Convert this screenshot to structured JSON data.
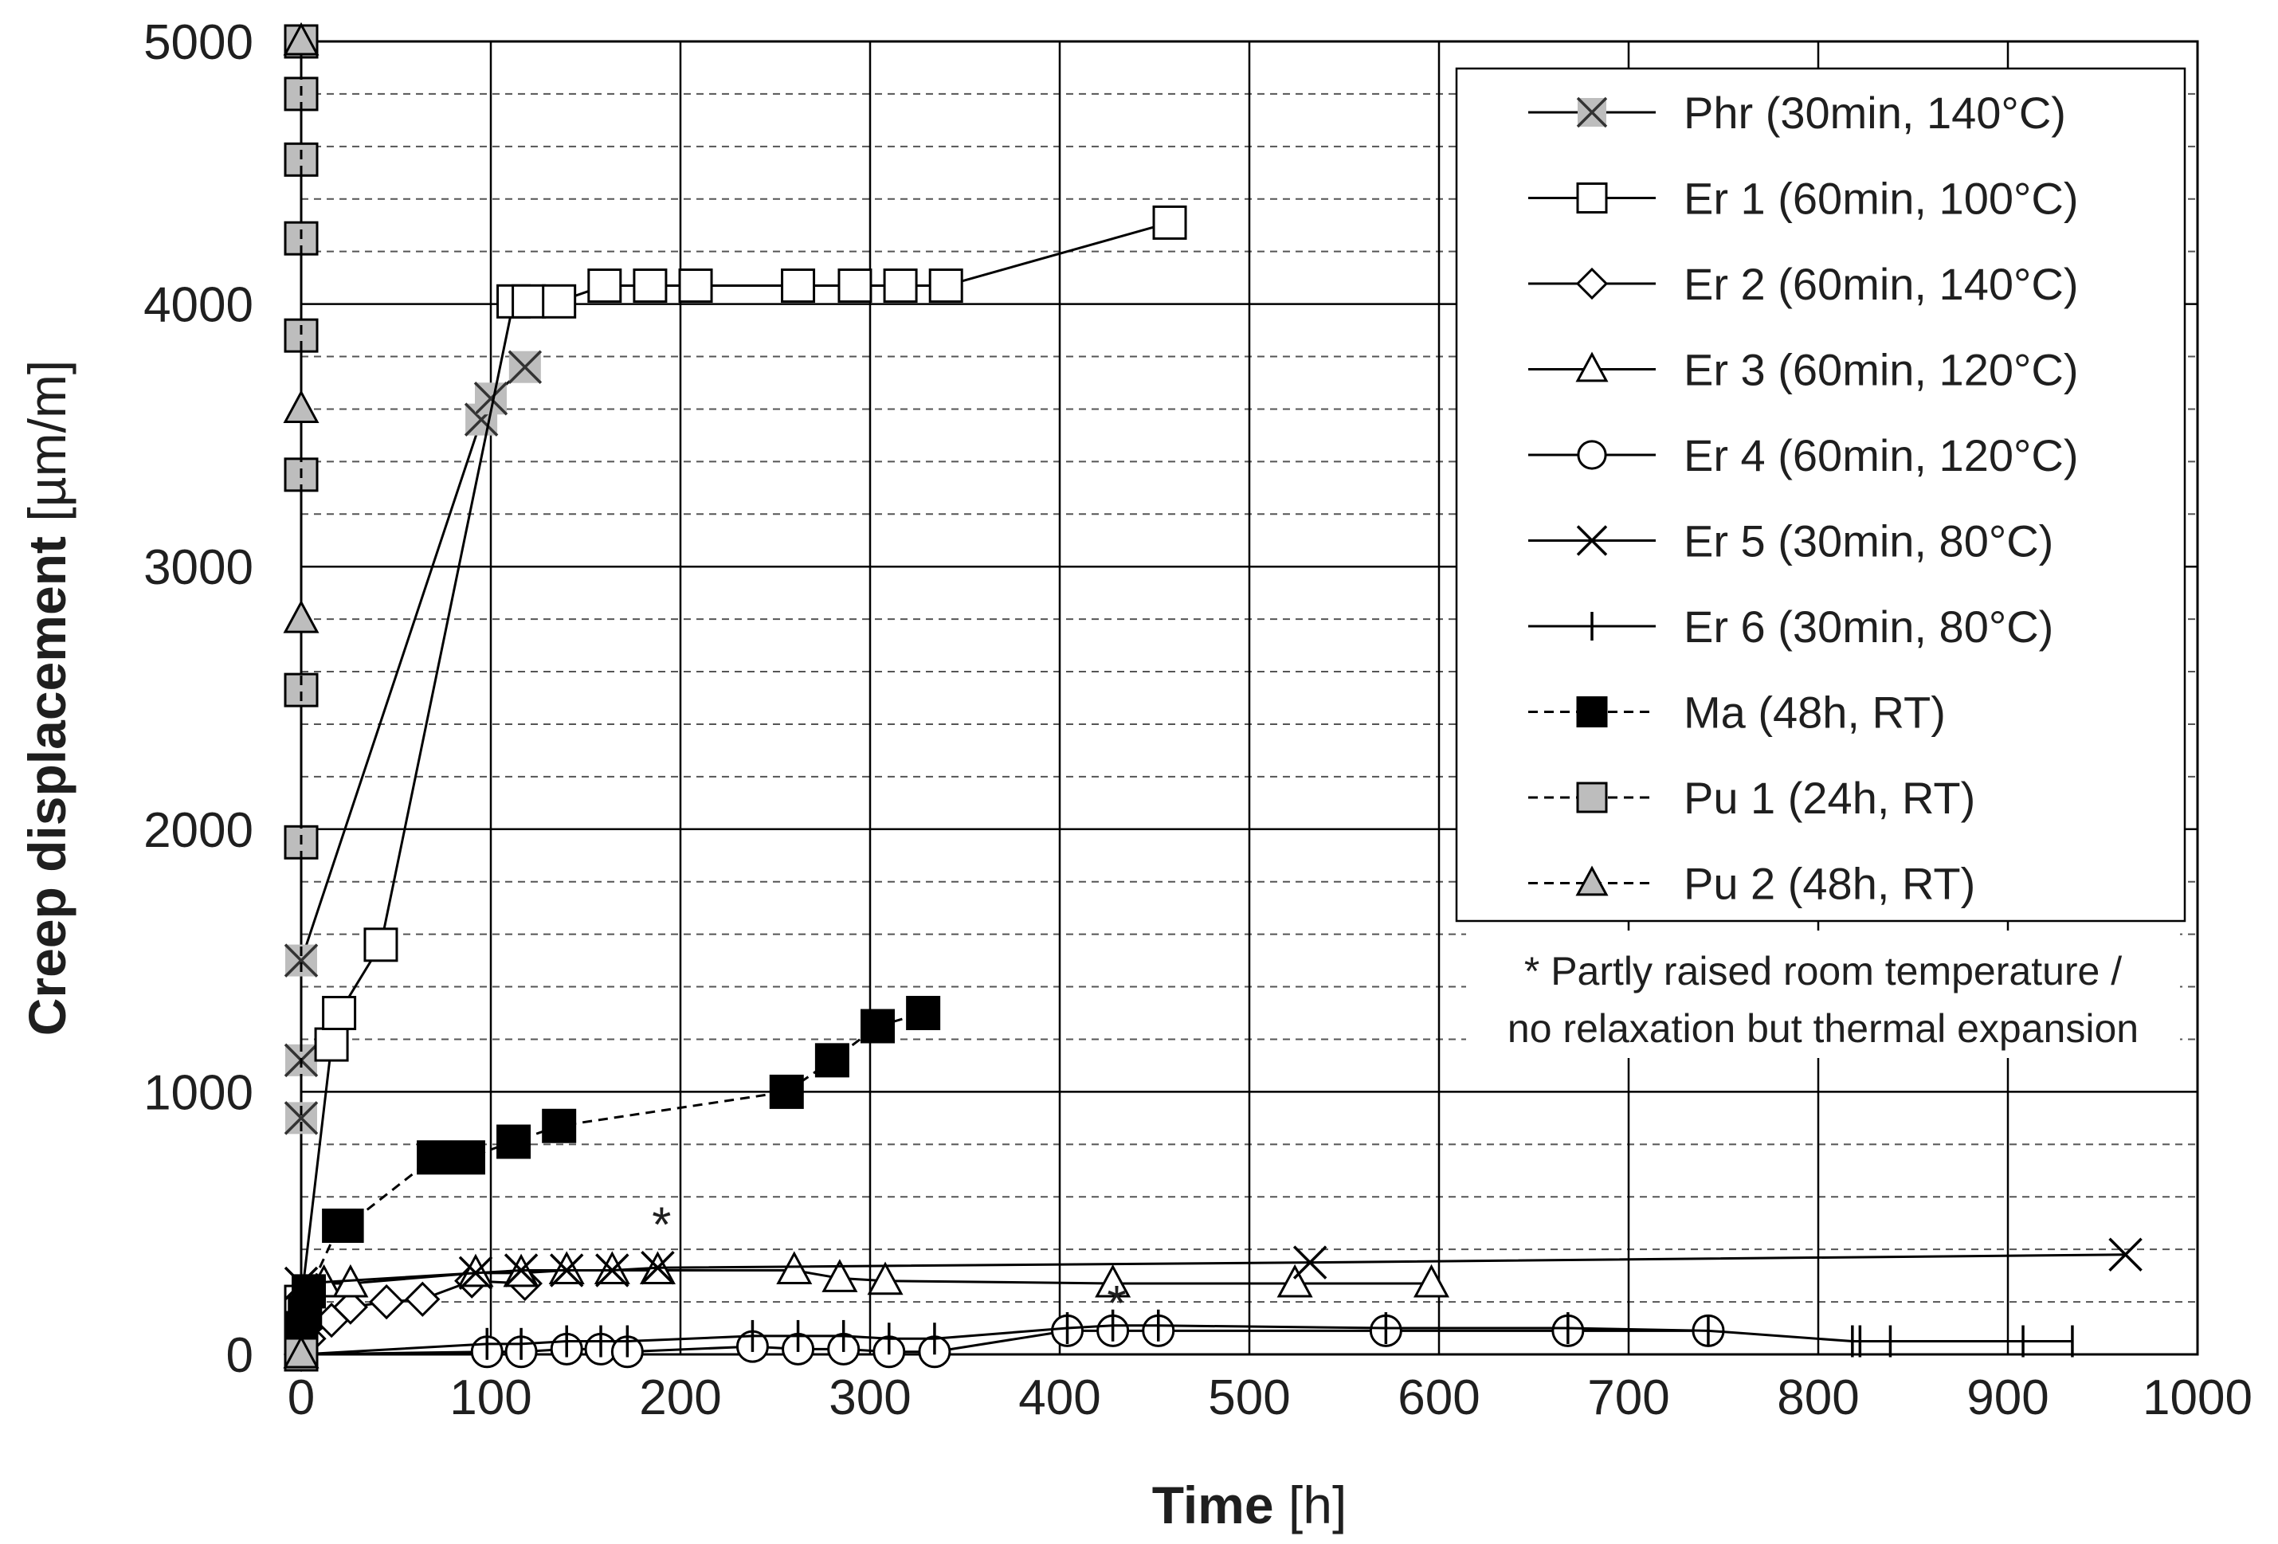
{
  "chart_data": {
    "type": "line",
    "xlabel": {
      "bold": "Time",
      "rest": " [h]"
    },
    "ylabel": {
      "bold": "Creep displacement",
      "rest": " [µm/m]"
    },
    "xlim": [
      0,
      1000
    ],
    "ylim": [
      0,
      5000
    ],
    "xticks": [
      "0",
      "100",
      "200",
      "300",
      "400",
      "500",
      "600",
      "700",
      "800",
      "900",
      "1000"
    ],
    "yticks": [
      "0",
      "1000",
      "2000",
      "3000",
      "4000",
      "5000"
    ],
    "grid": {
      "major": true,
      "minor_y_dashed": true
    },
    "legend_position": "top-right",
    "note": [
      "* Partly raised room temperature /",
      "no relaxation but thermal expansion"
    ],
    "asterisk_annotations": [
      {
        "text": "*",
        "x": 190,
        "y": 430
      },
      {
        "text": "*",
        "x": 430,
        "y": 130
      }
    ],
    "series": [
      {
        "name": "Phr (30min, 140°C)",
        "line": "solid",
        "marker": "x-square",
        "fill": "#bdbdbd",
        "points": [
          [
            0,
            0
          ],
          [
            0,
            900
          ],
          [
            0,
            1120
          ],
          [
            0,
            1500
          ],
          [
            95,
            3560
          ],
          [
            100,
            3640
          ],
          [
            118,
            3760
          ]
        ]
      },
      {
        "name": "Er 1 (60min, 100°C)",
        "line": "solid",
        "marker": "square",
        "fill": "#ffffff",
        "points": [
          [
            0,
            0
          ],
          [
            0,
            200
          ],
          [
            16,
            1180
          ],
          [
            20,
            1300
          ],
          [
            42,
            1560
          ],
          [
            112,
            4010
          ],
          [
            120,
            4010
          ],
          [
            136,
            4010
          ],
          [
            160,
            4070
          ],
          [
            184,
            4070
          ],
          [
            208,
            4070
          ],
          [
            262,
            4070
          ],
          [
            292,
            4070
          ],
          [
            316,
            4070
          ],
          [
            340,
            4070
          ],
          [
            458,
            4310
          ]
        ]
      },
      {
        "name": "Er 2 (60min, 140°C)",
        "line": "solid",
        "marker": "diamond",
        "fill": "#ffffff",
        "points": [
          [
            0,
            0
          ],
          [
            4,
            60
          ],
          [
            16,
            130
          ],
          [
            26,
            180
          ],
          [
            45,
            200
          ],
          [
            64,
            210
          ],
          [
            90,
            280
          ],
          [
            118,
            270
          ]
        ]
      },
      {
        "name": "Er 3 (60min, 120°C)",
        "line": "solid",
        "marker": "triangle",
        "fill": "#ffffff",
        "points": [
          [
            0,
            0
          ],
          [
            12,
            270
          ],
          [
            26,
            270
          ],
          [
            92,
            310
          ],
          [
            116,
            310
          ],
          [
            140,
            320
          ],
          [
            164,
            320
          ],
          [
            188,
            320
          ],
          [
            260,
            320
          ],
          [
            284,
            290
          ],
          [
            308,
            280
          ],
          [
            428,
            270
          ],
          [
            524,
            270
          ],
          [
            596,
            270
          ]
        ]
      },
      {
        "name": "Er 4 (60min, 120°C)",
        "line": "solid",
        "marker": "circle",
        "fill": "#ffffff",
        "points": [
          [
            0,
            0
          ],
          [
            98,
            10
          ],
          [
            116,
            10
          ],
          [
            140,
            20
          ],
          [
            158,
            20
          ],
          [
            172,
            10
          ],
          [
            238,
            30
          ],
          [
            262,
            20
          ],
          [
            286,
            20
          ],
          [
            310,
            10
          ],
          [
            334,
            10
          ],
          [
            404,
            90
          ],
          [
            428,
            90
          ],
          [
            452,
            90
          ],
          [
            572,
            90
          ],
          [
            668,
            90
          ],
          [
            742,
            90
          ]
        ]
      },
      {
        "name": "Er 5 (30min, 80°C)",
        "line": "solid",
        "marker": "x",
        "fill": "#ffffff",
        "points": [
          [
            0,
            270
          ],
          [
            92,
            310
          ],
          [
            116,
            320
          ],
          [
            140,
            320
          ],
          [
            164,
            320
          ],
          [
            188,
            330
          ],
          [
            532,
            350
          ],
          [
            962,
            380
          ]
        ]
      },
      {
        "name": "Er 6 (30min, 80°C)",
        "line": "solid",
        "marker": "plus",
        "fill": "#ffffff",
        "points": [
          [
            0,
            0
          ],
          [
            98,
            40
          ],
          [
            116,
            40
          ],
          [
            140,
            50
          ],
          [
            158,
            50
          ],
          [
            172,
            50
          ],
          [
            238,
            70
          ],
          [
            262,
            70
          ],
          [
            286,
            70
          ],
          [
            310,
            60
          ],
          [
            334,
            60
          ],
          [
            404,
            100
          ],
          [
            428,
            110
          ],
          [
            452,
            110
          ],
          [
            572,
            100
          ],
          [
            668,
            100
          ],
          [
            742,
            90
          ],
          [
            818,
            50
          ],
          [
            822,
            50
          ],
          [
            838,
            50
          ],
          [
            908,
            50
          ],
          [
            934,
            50
          ]
        ]
      },
      {
        "name": "Ma (48h, RT)",
        "line": "dashed",
        "marker": "square",
        "fill": "#000000",
        "points": [
          [
            0,
            100
          ],
          [
            2,
            160
          ],
          [
            4,
            240
          ],
          [
            20,
            490
          ],
          [
            24,
            490
          ],
          [
            70,
            750
          ],
          [
            88,
            750
          ],
          [
            112,
            810
          ],
          [
            136,
            870
          ],
          [
            256,
            1000
          ],
          [
            280,
            1120
          ],
          [
            304,
            1250
          ],
          [
            328,
            1300
          ]
        ]
      },
      {
        "name": "Pu 1 (24h, RT)",
        "line": "dashed",
        "marker": "square",
        "fill": "#bdbdbd",
        "points": [
          [
            0,
            0
          ],
          [
            0,
            1950
          ],
          [
            0,
            2530
          ],
          [
            0,
            3350
          ],
          [
            0,
            3880
          ],
          [
            0,
            4250
          ],
          [
            0,
            4550
          ],
          [
            0,
            4800
          ],
          [
            0,
            5000
          ]
        ]
      },
      {
        "name": "Pu 2 (48h, RT)",
        "line": "dashed",
        "marker": "triangle",
        "fill": "#bdbdbd",
        "points": [
          [
            0,
            0
          ],
          [
            0,
            2800
          ],
          [
            0,
            3600
          ],
          [
            0,
            5000
          ]
        ]
      }
    ]
  }
}
